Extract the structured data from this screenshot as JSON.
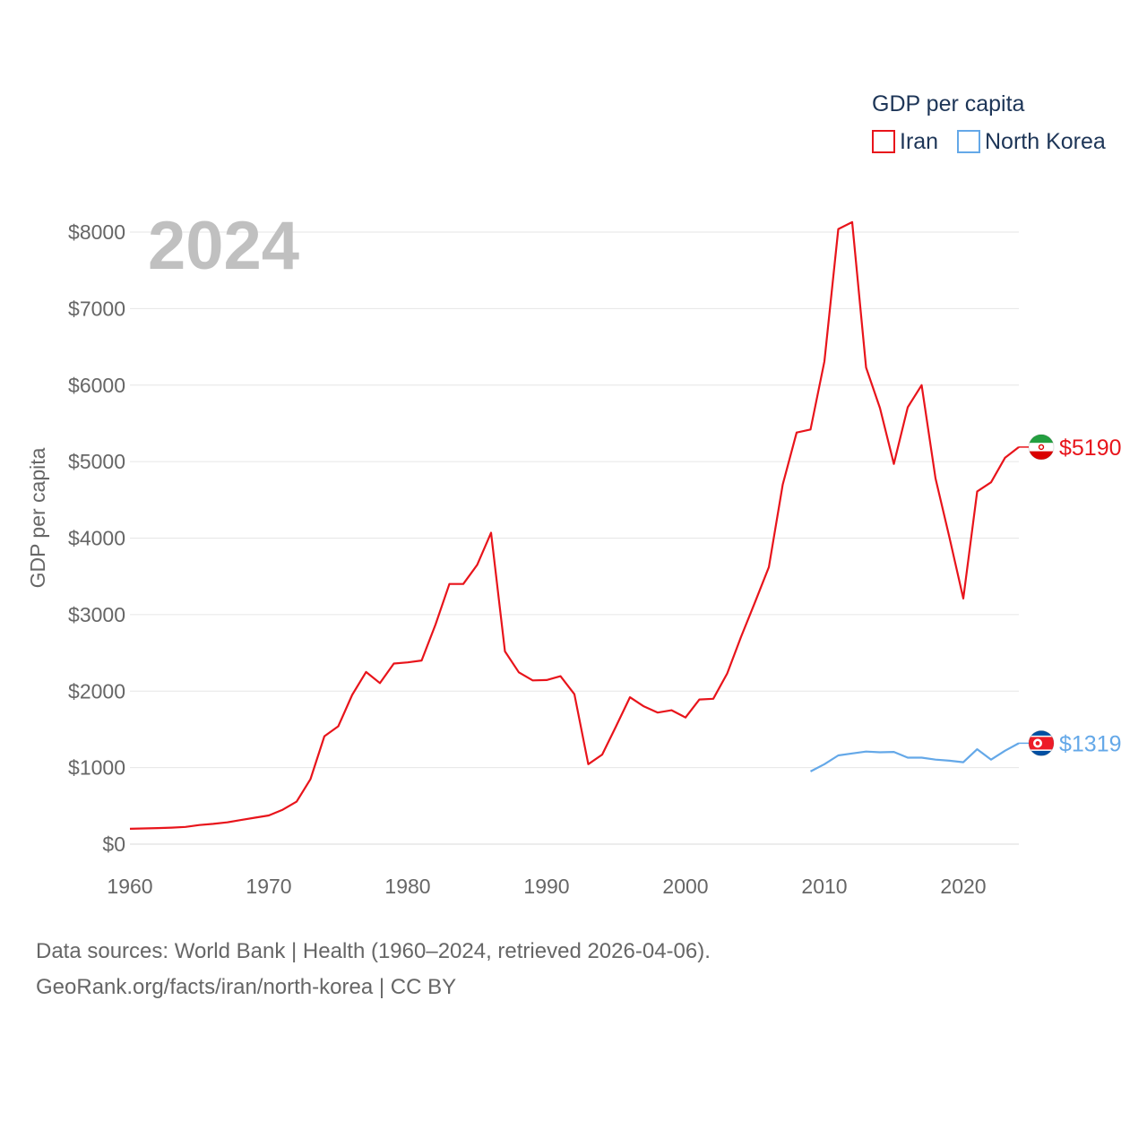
{
  "chart_data": {
    "type": "line",
    "year_label": "2024",
    "ylabel": "GDP per capita",
    "xlabel": "",
    "xlim": [
      1960,
      2024
    ],
    "ylim": [
      0,
      8000
    ],
    "x_ticks": [
      1960,
      1970,
      1980,
      1990,
      2000,
      2010,
      2020
    ],
    "x_tick_labels": [
      "1960",
      "1970",
      "1980",
      "1990",
      "2000",
      "2010",
      "2020"
    ],
    "y_ticks": [
      0,
      1000,
      2000,
      3000,
      4000,
      5000,
      6000,
      7000,
      8000
    ],
    "y_tick_labels": [
      "$0",
      "$1000",
      "$2000",
      "$3000",
      "$4000",
      "$5000",
      "$6000",
      "$7000",
      "$8000"
    ],
    "grid": true,
    "legend": {
      "title": "GDP per capita",
      "position": "top-right",
      "items": [
        "Iran",
        "North Korea"
      ]
    },
    "series": [
      {
        "name": "Iran",
        "color": "#e8141b",
        "end_label": "$5190",
        "flag_icon": "iran-flag-icon",
        "x": [
          1960,
          1961,
          1962,
          1963,
          1964,
          1965,
          1966,
          1967,
          1968,
          1969,
          1970,
          1971,
          1972,
          1973,
          1974,
          1975,
          1976,
          1977,
          1978,
          1979,
          1980,
          1981,
          1982,
          1983,
          1984,
          1985,
          1986,
          1987,
          1988,
          1989,
          1990,
          1991,
          1992,
          1993,
          1994,
          1995,
          1996,
          1997,
          1998,
          1999,
          2000,
          2001,
          2002,
          2003,
          2004,
          2005,
          2006,
          2007,
          2008,
          2009,
          2010,
          2011,
          2012,
          2013,
          2014,
          2015,
          2016,
          2017,
          2018,
          2019,
          2020,
          2021,
          2022,
          2023,
          2024
        ],
        "values": [
          200,
          205,
          210,
          215,
          225,
          250,
          265,
          285,
          315,
          345,
          375,
          450,
          555,
          850,
          1410,
          1540,
          1950,
          2250,
          2105,
          2360,
          2375,
          2400,
          2870,
          3400,
          3400,
          3650,
          4070,
          2520,
          2245,
          2140,
          2145,
          2195,
          1960,
          1045,
          1170,
          1540,
          1920,
          1800,
          1720,
          1750,
          1655,
          1890,
          1900,
          2230,
          2710,
          3160,
          3620,
          4700,
          5380,
          5420,
          6310,
          8040,
          8130,
          6230,
          5700,
          4970,
          5710,
          6000,
          4780,
          4010,
          3210,
          4610,
          4730,
          5050,
          5190
        ]
      },
      {
        "name": "North Korea",
        "color": "#64a8e8",
        "end_label": "$1319",
        "flag_icon": "north-korea-flag-icon",
        "x": [
          2009,
          2010,
          2011,
          2012,
          2013,
          2014,
          2015,
          2016,
          2017,
          2018,
          2019,
          2020,
          2021,
          2022,
          2023,
          2024
        ],
        "values": [
          950,
          1045,
          1160,
          1185,
          1210,
          1200,
          1205,
          1130,
          1130,
          1105,
          1090,
          1070,
          1240,
          1105,
          1220,
          1319
        ]
      }
    ]
  },
  "source": {
    "line1": "Data sources: World Bank | Health (1960–2024, retrieved 2026-04-06).",
    "line2": "GeoRank.org/facts/iran/north-korea | CC BY"
  }
}
